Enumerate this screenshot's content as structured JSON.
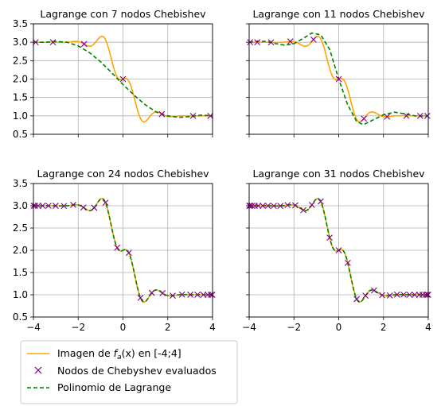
{
  "chart_data": {
    "type": "line",
    "x_ticks": [
      "−4",
      "−2",
      "0",
      "2",
      "4"
    ],
    "y_ticks": [
      "0.5",
      "1.0",
      "1.5",
      "2.0",
      "2.5",
      "3.0",
      "3.5"
    ],
    "xlim": [
      -4,
      4
    ],
    "ylim": [
      0.5,
      3.5
    ],
    "grid": true,
    "legend": {
      "placement": "bottom-left",
      "entries": [
        {
          "key": "func",
          "label": "Imagen de f_a(x) en [-4;4]",
          "color": "#FFA500",
          "style": "solid"
        },
        {
          "key": "nodes",
          "label": "Nodos de Chebyshev evaluados",
          "color": "#800080",
          "style": "x-marker"
        },
        {
          "key": "poly",
          "label": "Polinomio de Lagrange",
          "color": "#008000",
          "style": "dashed"
        }
      ]
    },
    "panels": [
      {
        "title": "Lagrange con 7 nodos Chebishev",
        "n": 7,
        "poly": [
          [
            -4,
            3.0
          ],
          [
            -3.5,
            3.0
          ],
          [
            -3,
            3.02
          ],
          [
            -2.5,
            3.0
          ],
          [
            -2,
            2.9
          ],
          [
            -1.5,
            2.72
          ],
          [
            -1,
            2.47
          ],
          [
            -0.5,
            2.17
          ],
          [
            0,
            1.85
          ],
          [
            0.5,
            1.56
          ],
          [
            1,
            1.3
          ],
          [
            1.5,
            1.1
          ],
          [
            2,
            1.0
          ],
          [
            2.5,
            0.96
          ],
          [
            3,
            0.98
          ],
          [
            3.5,
            1.02
          ],
          [
            4,
            1.0
          ]
        ]
      },
      {
        "title": "Lagrange con 11 nodos Chebishev",
        "n": 11,
        "poly": [
          [
            -4,
            3.0
          ],
          [
            -3.6,
            3.03
          ],
          [
            -3.2,
            3.02
          ],
          [
            -2.8,
            2.96
          ],
          [
            -2.4,
            2.92
          ],
          [
            -2,
            2.96
          ],
          [
            -1.6,
            3.1
          ],
          [
            -1.2,
            3.25
          ],
          [
            -0.8,
            3.2
          ],
          [
            -0.4,
            2.8
          ],
          [
            0,
            2.0
          ],
          [
            0.4,
            1.3
          ],
          [
            0.8,
            0.85
          ],
          [
            1.1,
            0.76
          ],
          [
            1.5,
            0.88
          ],
          [
            2,
            1.03
          ],
          [
            2.5,
            1.1
          ],
          [
            3,
            1.05
          ],
          [
            3.5,
            0.99
          ],
          [
            4,
            1.0
          ]
        ]
      },
      {
        "title": "Lagrange con 24 nodos Chebishev",
        "n": 24,
        "poly": "func"
      },
      {
        "title": "Lagrange con 31 nodos Chebishev",
        "n": 31,
        "poly": "func"
      }
    ]
  }
}
